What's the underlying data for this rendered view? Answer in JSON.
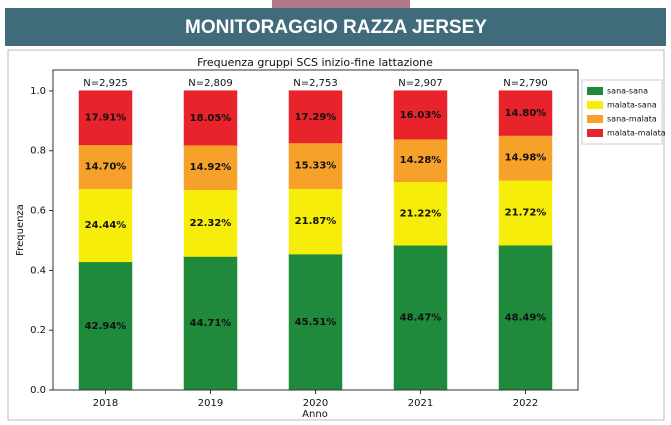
{
  "header": {
    "title": "MONITORAGGIO RAZZA JERSEY"
  },
  "chart_data": {
    "type": "stacked_bar",
    "title": "Frequenza gruppi SCS inizio-fine lattazione",
    "xlabel": "Anno",
    "ylabel": "Frequenza",
    "categories": [
      "2018",
      "2019",
      "2020",
      "2021",
      "2022"
    ],
    "annotations": [
      "N=2,925",
      "N=2,809",
      "N=2,753",
      "N=2,907",
      "N=2,790"
    ],
    "series": [
      {
        "name": "sana-sana",
        "color": "#1f8a3b",
        "values": [
          0.4294,
          0.4471,
          0.4551,
          0.4847,
          0.4849
        ],
        "value_labels": [
          "42.94%",
          "44.71%",
          "45.51%",
          "48.47%",
          "48.49%"
        ]
      },
      {
        "name": "malata-sana",
        "color": "#f6ee0a",
        "values": [
          0.2444,
          0.2232,
          0.2187,
          0.2122,
          0.2172
        ],
        "value_labels": [
          "24.44%",
          "22.32%",
          "21.87%",
          "21.22%",
          "21.72%"
        ]
      },
      {
        "name": "sana-malata",
        "color": "#f5a12a",
        "values": [
          0.147,
          0.1492,
          0.1533,
          0.1428,
          0.1498
        ],
        "value_labels": [
          "14.70%",
          "14.92%",
          "15.33%",
          "14.28%",
          "14.98%"
        ]
      },
      {
        "name": "malata-malata",
        "color": "#e8232b",
        "values": [
          0.1791,
          0.1805,
          0.1729,
          0.1603,
          0.148
        ],
        "value_labels": [
          "17.91%",
          "18.05%",
          "17.29%",
          "16.03%",
          "14.80%"
        ]
      }
    ],
    "ylim": [
      0,
      1.07
    ],
    "yticks": [
      {
        "value": 0,
        "label": "0.0"
      },
      0.2,
      0.4,
      0.6,
      0.8,
      {
        "value": 1,
        "label": "1.0"
      }
    ],
    "legend": "upper right outside"
  }
}
